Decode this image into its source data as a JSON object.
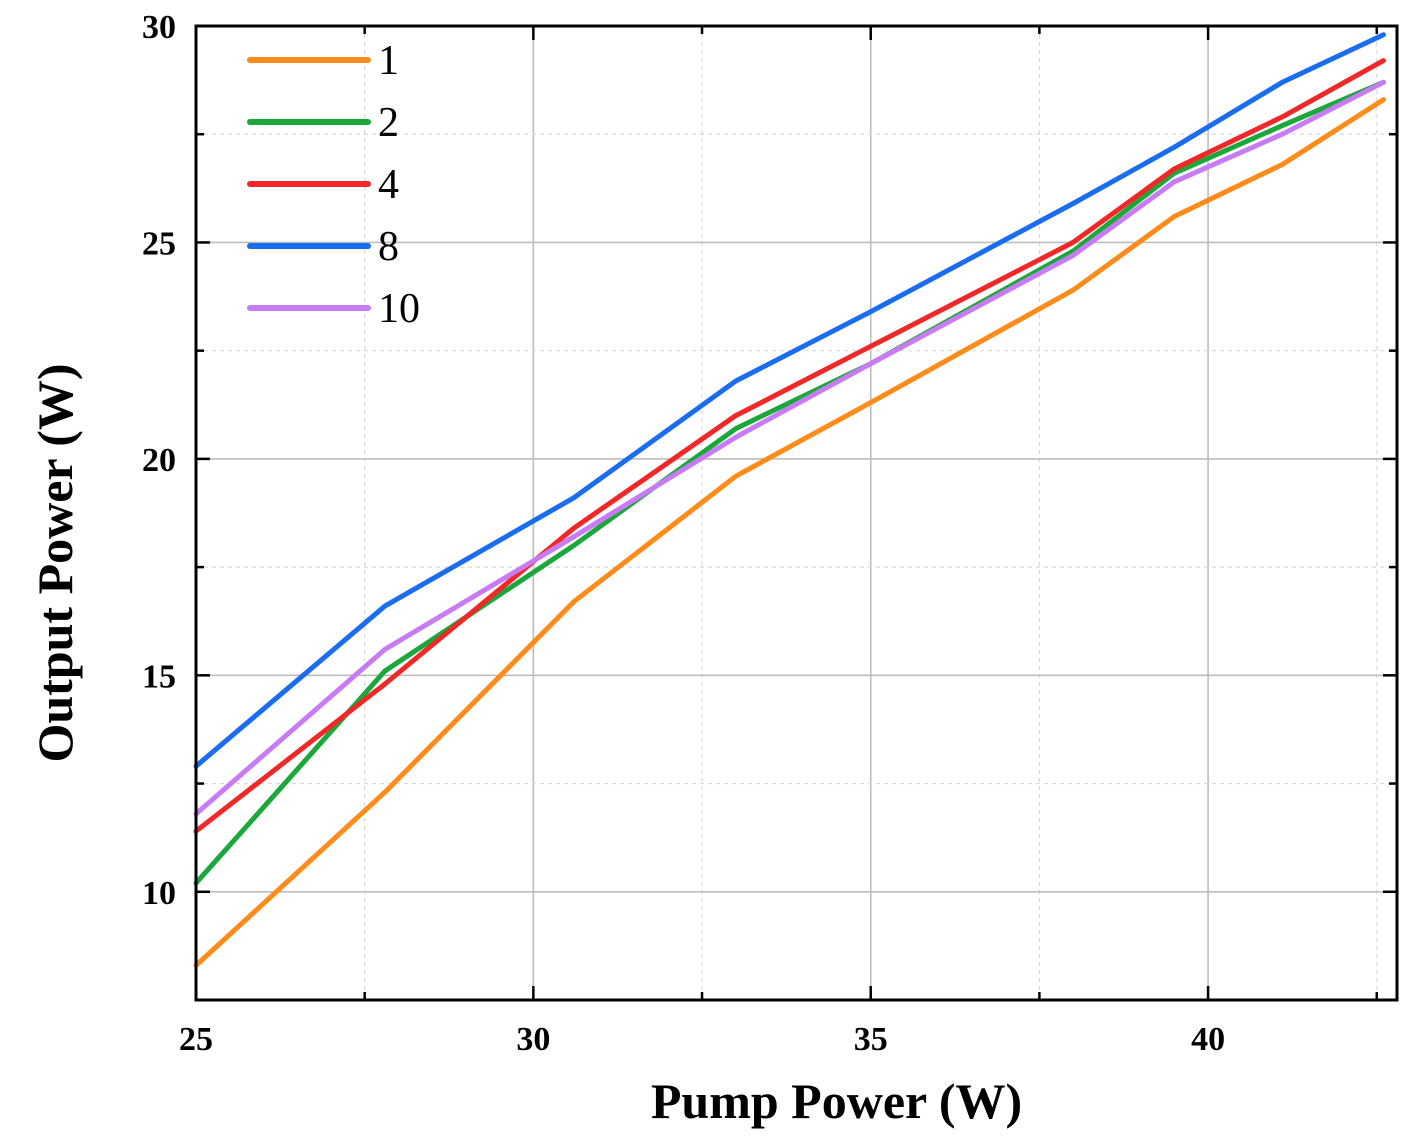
{
  "chart_data": {
    "type": "line",
    "title": "",
    "xlabel": "Pump Power (W)",
    "ylabel": "Output Power (W)",
    "xlim": [
      25,
      42.8
    ],
    "ylim": [
      7.5,
      30
    ],
    "xticks": [
      25,
      30,
      35,
      40
    ],
    "yticks": [
      10,
      15,
      20,
      25,
      30
    ],
    "grid": true,
    "legend_position": "top-left",
    "series": [
      {
        "name": "1",
        "color": "#FF8C1A",
        "x": [
          25,
          27.8,
          30.6,
          33.0,
          35.0,
          38.0,
          39.5,
          41.1,
          42.6
        ],
        "y": [
          8.3,
          12.3,
          16.7,
          19.6,
          21.3,
          23.9,
          25.6,
          26.8,
          28.3
        ]
      },
      {
        "name": "2",
        "color": "#1BA83A",
        "x": [
          25,
          27.8,
          30.6,
          33.0,
          35.0,
          38.0,
          39.5,
          41.1,
          42.6
        ],
        "y": [
          10.2,
          15.1,
          18.0,
          20.7,
          22.2,
          24.8,
          26.6,
          27.7,
          28.7
        ]
      },
      {
        "name": "4",
        "color": "#F02828",
        "x": [
          25,
          27.8,
          30.6,
          33.0,
          35.0,
          38.0,
          39.5,
          41.1,
          42.6
        ],
        "y": [
          11.4,
          14.8,
          18.4,
          21.0,
          22.6,
          25.0,
          26.7,
          27.9,
          29.2
        ]
      },
      {
        "name": "8",
        "color": "#1A6CF0",
        "x": [
          25,
          27.8,
          30.6,
          33.0,
          35.0,
          38.0,
          39.5,
          41.1,
          42.6
        ],
        "y": [
          12.9,
          16.6,
          19.1,
          21.8,
          23.4,
          25.9,
          27.2,
          28.7,
          29.8
        ]
      },
      {
        "name": "10",
        "color": "#C97BF5",
        "x": [
          25,
          27.8,
          30.6,
          33.0,
          35.0,
          38.0,
          39.5,
          41.1,
          42.6
        ],
        "y": [
          11.8,
          15.6,
          18.2,
          20.5,
          22.2,
          24.7,
          26.4,
          27.5,
          28.7
        ]
      }
    ]
  }
}
